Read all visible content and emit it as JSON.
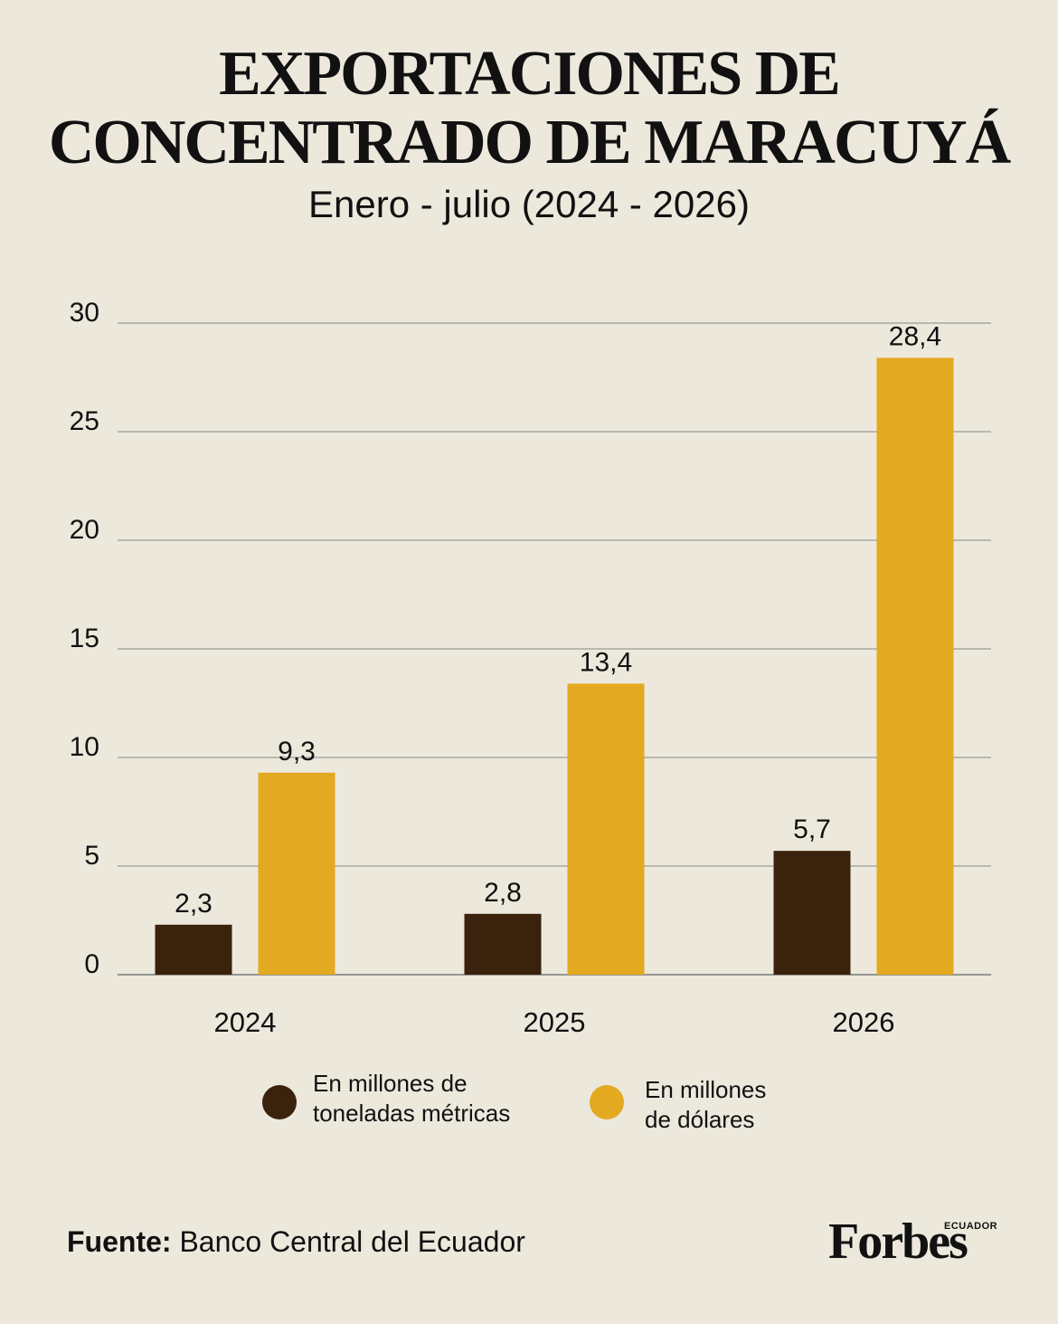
{
  "title_line1": "EXPORTACIONES DE",
  "title_line2": "CONCENTRADO DE MARACUYÁ",
  "subtitle": "Enero - julio (2024 - 2026)",
  "chart_data": {
    "type": "bar",
    "categories": [
      "2024",
      "2025",
      "2026"
    ],
    "series": [
      {
        "name": "En millones de toneladas métricas",
        "values": [
          2.3,
          2.8,
          5.7
        ],
        "labels": [
          "2,3",
          "2,8",
          "5,7"
        ],
        "color": "#3b220c"
      },
      {
        "name": "En millones de dólares",
        "values": [
          9.3,
          13.4,
          28.4
        ],
        "labels": [
          "9,3",
          "13,4",
          "28,4"
        ],
        "color": "#e3a920"
      }
    ],
    "ylim": [
      0,
      30
    ],
    "yticks": [
      0,
      5,
      10,
      15,
      20,
      25,
      30
    ],
    "grid": true,
    "legend": "bottom"
  },
  "legend": {
    "tons_line1": "En millones de",
    "tons_line2": "toneladas métricas",
    "usd_line1": "En millones",
    "usd_line2": "de dólares"
  },
  "source": {
    "label": "Fuente:",
    "text": " Banco Central del Ecuador"
  },
  "logo": {
    "name": "Forbes",
    "sub": "ECUADOR"
  }
}
